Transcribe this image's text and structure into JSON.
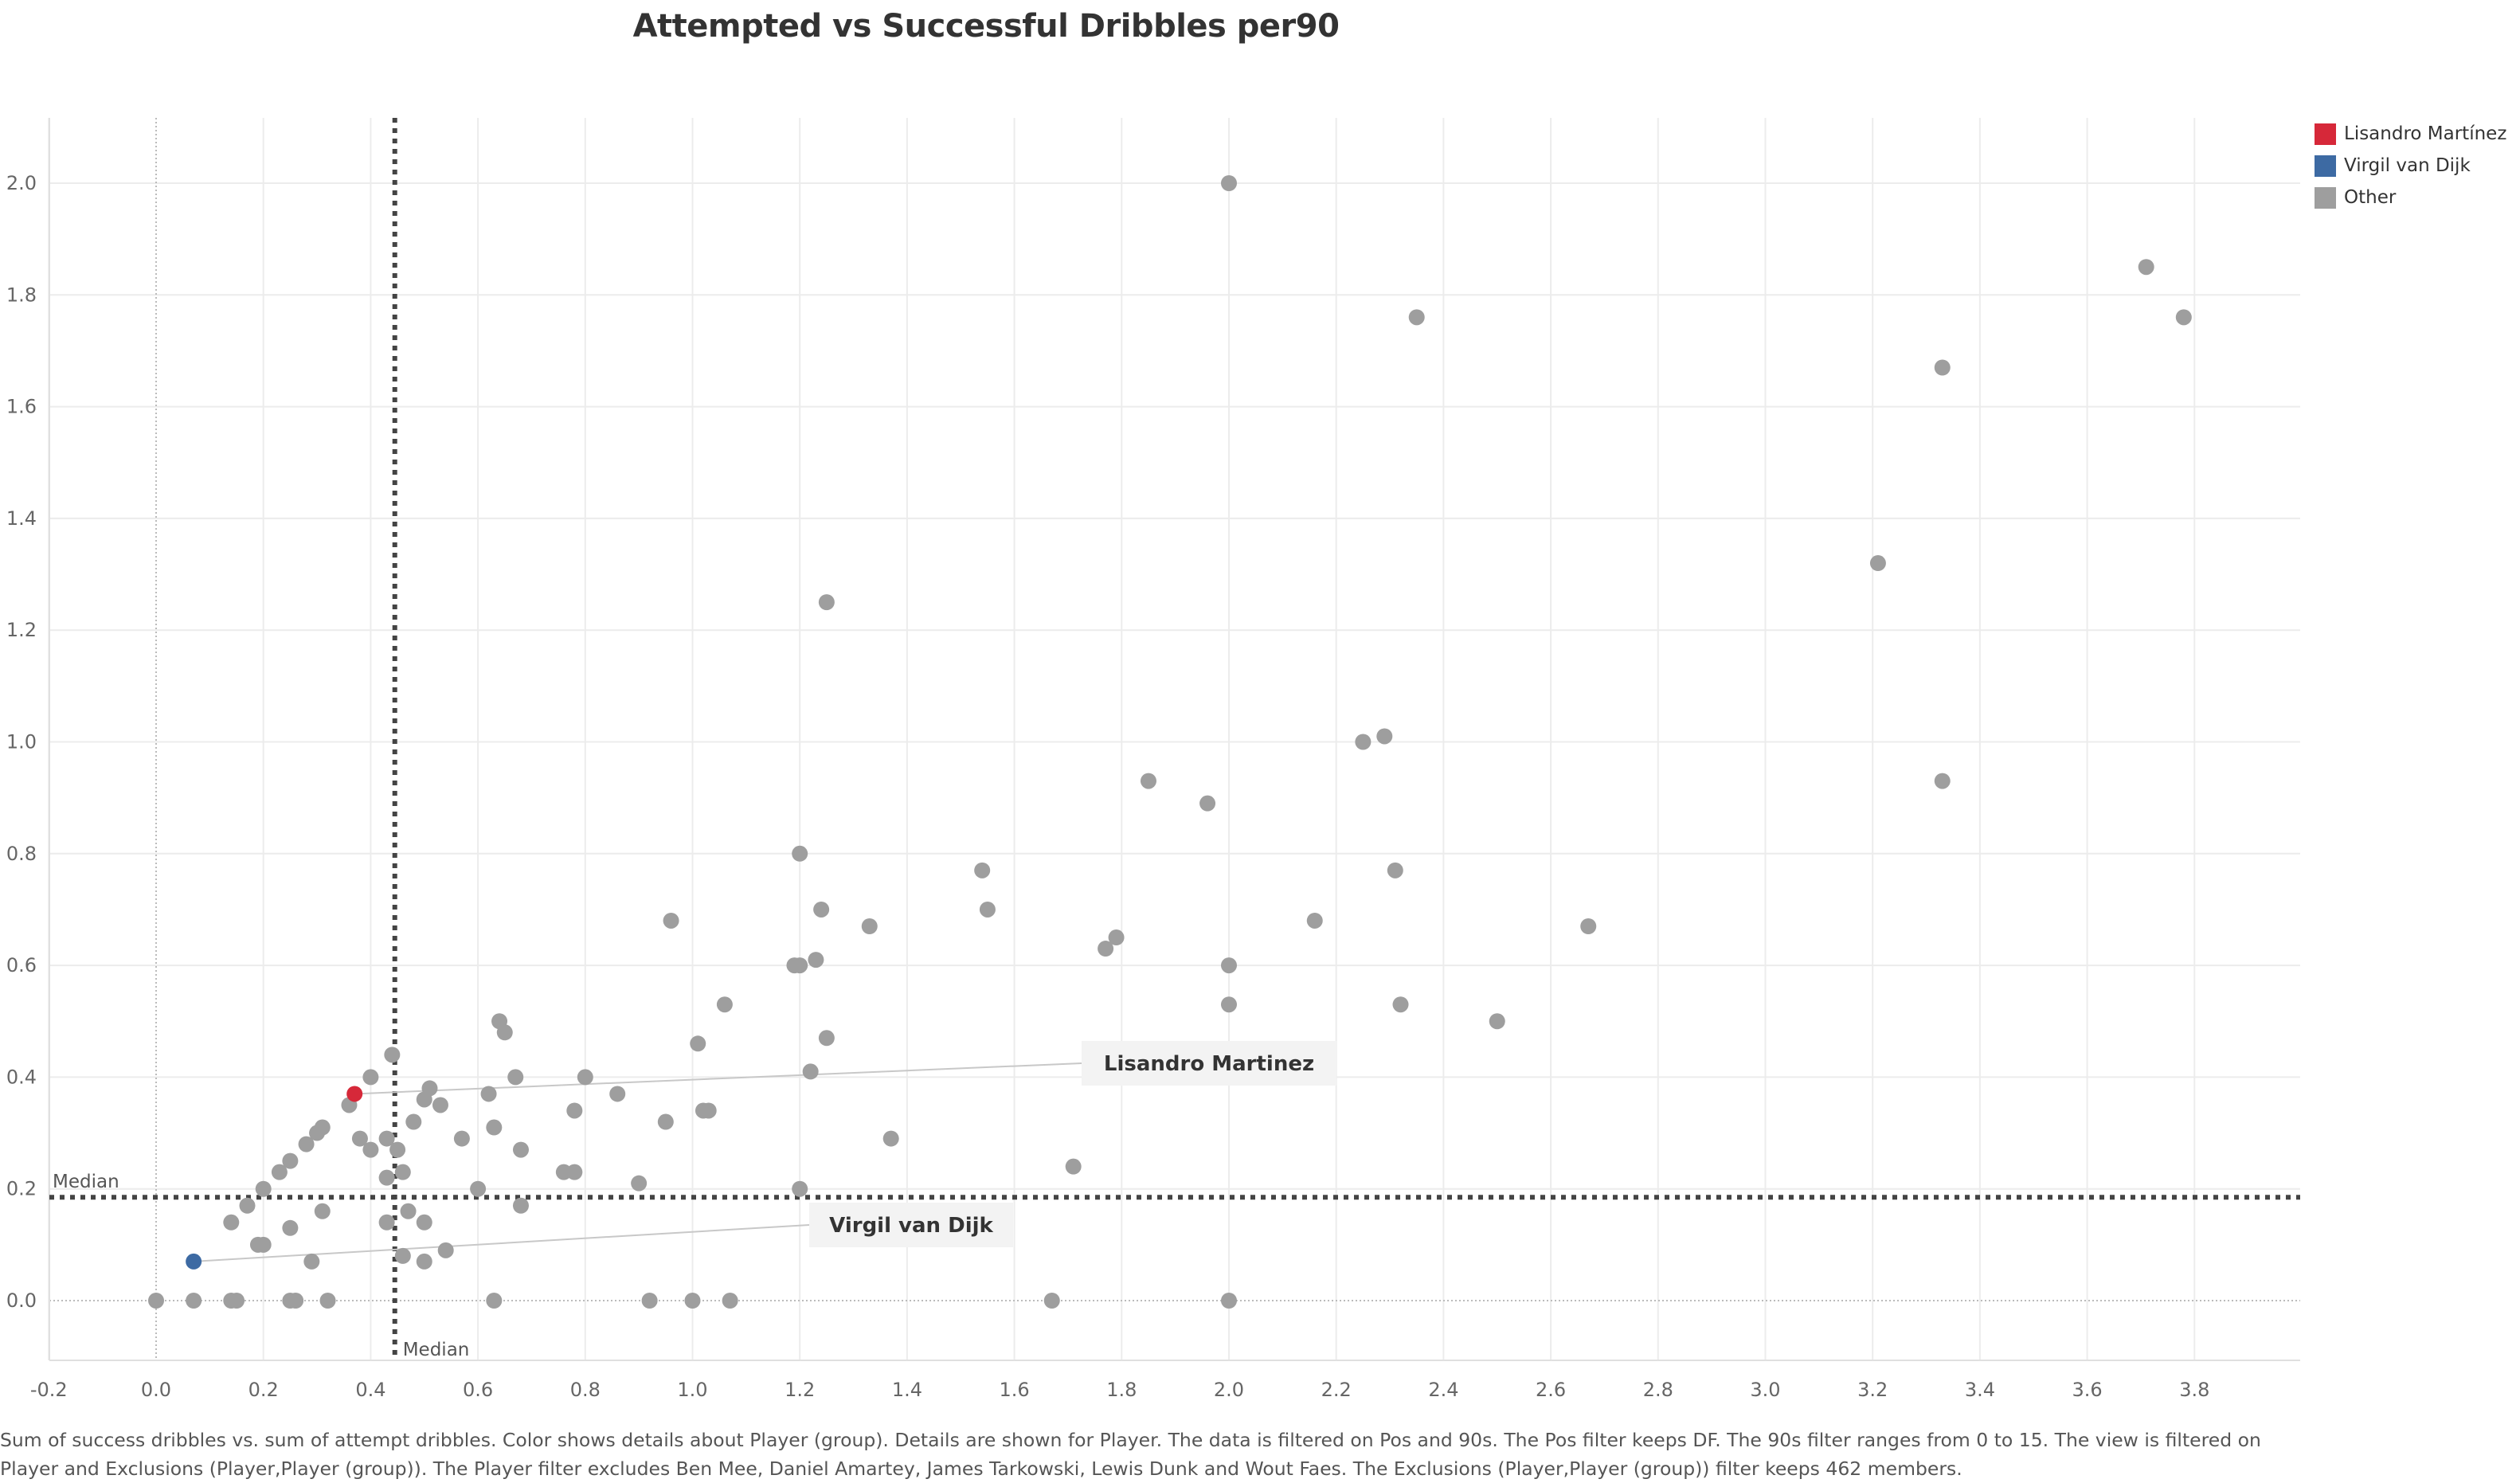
{
  "title": "Attempted vs Successful Dribbles per90",
  "legend": [
    {
      "label": "Lisandro Martínez",
      "color": "#d62839"
    },
    {
      "label": "Virgil van Dijk",
      "color": "#3d6aa3"
    },
    {
      "label": "Other",
      "color": "#9e9e9e"
    }
  ],
  "footnote": "Sum of success dribbles vs. sum of attempt dribbles.  Color shows details about Player (group).  Details are shown for Player. The data is filtered on Pos and 90s. The Pos filter keeps DF. The 90s filter ranges from 0 to 15. The view is filtered on Player and Exclusions (Player,Player (group)). The Player filter excludes Ben Mee, Daniel Amartey, James Tarkowski, Lewis Dunk and Wout Faes. The Exclusions (Player,Player (group)) filter keeps 462 members.",
  "chart_data": {
    "type": "scatter",
    "title": "Attempted vs Successful Dribbles per90",
    "xlabel": "",
    "ylabel": "",
    "xlim": [
      -0.25,
      3.95
    ],
    "ylim": [
      -0.11,
      2.11
    ],
    "x_ticks": [
      "-0.2",
      "0.0",
      "0.2",
      "0.4",
      "0.6",
      "0.8",
      "1.0",
      "1.2",
      "1.4",
      "1.6",
      "1.8",
      "2.0",
      "2.2",
      "2.4",
      "2.6",
      "2.8",
      "3.0",
      "3.2",
      "3.4",
      "3.6",
      "3.8"
    ],
    "y_ticks": [
      "0.0",
      "0.2",
      "0.4",
      "0.6",
      "0.8",
      "1.0",
      "1.2",
      "1.4",
      "1.6",
      "1.8",
      "2.0"
    ],
    "grid": true,
    "median_x": 0.445,
    "median_y": 0.185,
    "median_label": "Median",
    "series": [
      {
        "name": "Lisandro Martínez",
        "color": "#d62839",
        "label": "Lisandro Martinez",
        "points": [
          [
            0.37,
            0.37
          ]
        ]
      },
      {
        "name": "Virgil van Dijk",
        "color": "#3d6aa3",
        "label": "Virgil van Dijk",
        "points": [
          [
            0.07,
            0.07
          ]
        ]
      },
      {
        "name": "Other",
        "color": "#9e9e9e",
        "points": [
          [
            2.0,
            2.0
          ],
          [
            2.35,
            1.76
          ],
          [
            3.71,
            1.85
          ],
          [
            3.78,
            1.76
          ],
          [
            3.33,
            1.67
          ],
          [
            3.21,
            1.32
          ],
          [
            1.25,
            1.25
          ],
          [
            2.25,
            1.0
          ],
          [
            2.29,
            1.01
          ],
          [
            1.85,
            0.93
          ],
          [
            1.96,
            0.89
          ],
          [
            3.33,
            0.93
          ],
          [
            1.2,
            0.8
          ],
          [
            1.54,
            0.77
          ],
          [
            2.31,
            0.77
          ],
          [
            0.96,
            0.68
          ],
          [
            1.24,
            0.7
          ],
          [
            1.33,
            0.67
          ],
          [
            1.55,
            0.7
          ],
          [
            2.16,
            0.68
          ],
          [
            2.67,
            0.67
          ],
          [
            1.77,
            0.63
          ],
          [
            1.79,
            0.65
          ],
          [
            1.19,
            0.6
          ],
          [
            1.2,
            0.6
          ],
          [
            1.23,
            0.61
          ],
          [
            2.0,
            0.6
          ],
          [
            1.06,
            0.53
          ],
          [
            2.0,
            0.53
          ],
          [
            2.32,
            0.53
          ],
          [
            2.5,
            0.5
          ],
          [
            0.64,
            0.5
          ],
          [
            0.65,
            0.48
          ],
          [
            1.25,
            0.47
          ],
          [
            1.01,
            0.46
          ],
          [
            0.44,
            0.44
          ],
          [
            0.4,
            0.4
          ],
          [
            0.67,
            0.4
          ],
          [
            0.8,
            0.4
          ],
          [
            1.22,
            0.41
          ],
          [
            0.51,
            0.38
          ],
          [
            0.5,
            0.36
          ],
          [
            0.53,
            0.35
          ],
          [
            0.62,
            0.37
          ],
          [
            0.86,
            0.37
          ],
          [
            0.36,
            0.35
          ],
          [
            0.78,
            0.34
          ],
          [
            1.02,
            0.34
          ],
          [
            1.03,
            0.34
          ],
          [
            0.3,
            0.3
          ],
          [
            0.31,
            0.31
          ],
          [
            0.48,
            0.32
          ],
          [
            0.63,
            0.31
          ],
          [
            0.95,
            0.32
          ],
          [
            0.28,
            0.28
          ],
          [
            0.38,
            0.29
          ],
          [
            0.43,
            0.29
          ],
          [
            0.57,
            0.29
          ],
          [
            1.37,
            0.29
          ],
          [
            0.25,
            0.25
          ],
          [
            0.4,
            0.27
          ],
          [
            0.45,
            0.27
          ],
          [
            0.68,
            0.27
          ],
          [
            0.23,
            0.23
          ],
          [
            0.43,
            0.22
          ],
          [
            0.46,
            0.23
          ],
          [
            0.76,
            0.23
          ],
          [
            0.78,
            0.23
          ],
          [
            1.71,
            0.24
          ],
          [
            0.2,
            0.2
          ],
          [
            0.6,
            0.2
          ],
          [
            0.9,
            0.21
          ],
          [
            1.2,
            0.2
          ],
          [
            0.17,
            0.17
          ],
          [
            0.31,
            0.16
          ],
          [
            0.47,
            0.16
          ],
          [
            0.68,
            0.17
          ],
          [
            0.14,
            0.14
          ],
          [
            0.25,
            0.13
          ],
          [
            0.43,
            0.14
          ],
          [
            0.5,
            0.14
          ],
          [
            0.19,
            0.1
          ],
          [
            0.2,
            0.1
          ],
          [
            0.29,
            0.07
          ],
          [
            0.46,
            0.08
          ],
          [
            0.5,
            0.07
          ],
          [
            0.54,
            0.09
          ],
          [
            0.0,
            0.0
          ],
          [
            0.07,
            0.0
          ],
          [
            0.14,
            0.0
          ],
          [
            0.15,
            0.0
          ],
          [
            0.25,
            0.0
          ],
          [
            0.26,
            0.0
          ],
          [
            0.32,
            0.0
          ],
          [
            0.63,
            0.0
          ],
          [
            0.92,
            0.0
          ],
          [
            1.0,
            0.0
          ],
          [
            1.07,
            0.0
          ],
          [
            1.67,
            0.0
          ],
          [
            2.0,
            0.0
          ]
        ]
      }
    ]
  }
}
